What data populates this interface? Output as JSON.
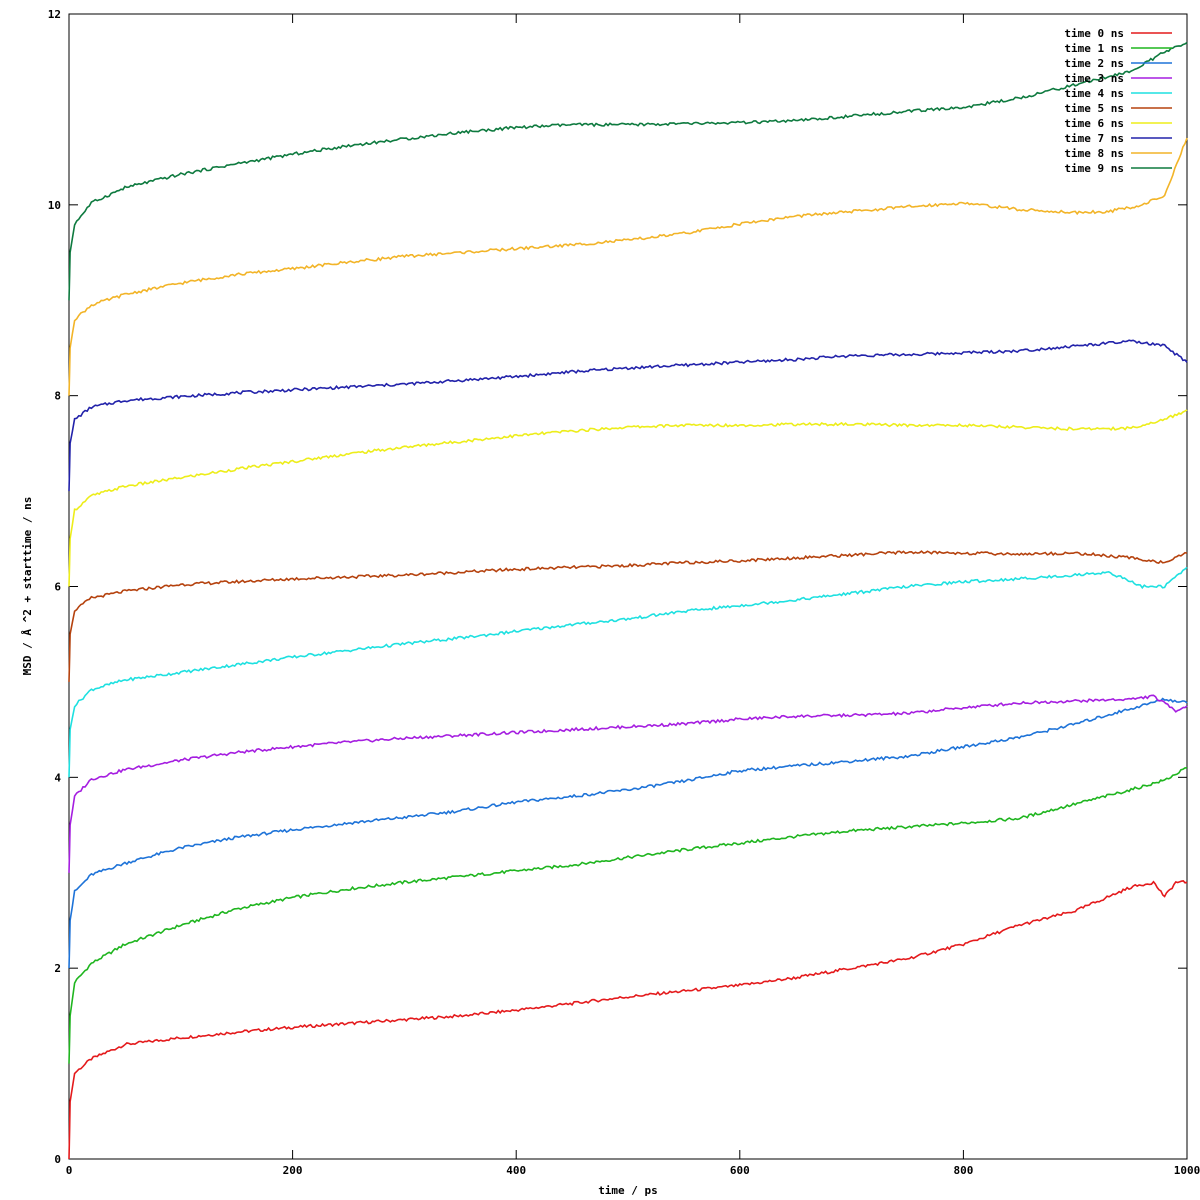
{
  "chart_data": {
    "type": "line",
    "title": "",
    "xlabel": "time / ps",
    "ylabel": "MSD / Å ^2 + starttime / ns",
    "xlim": [
      0,
      1000
    ],
    "ylim": [
      0,
      12
    ],
    "xticks": [
      0,
      200,
      400,
      600,
      800,
      1000
    ],
    "yticks": [
      0,
      2,
      4,
      6,
      8,
      10,
      12
    ],
    "grid": false,
    "legend_position": "top-right",
    "series": [
      {
        "name": "time 0 ns",
        "color": "#e41a1c",
        "points": [
          [
            0,
            0.0
          ],
          [
            1,
            0.6
          ],
          [
            5,
            0.9
          ],
          [
            20,
            1.05
          ],
          [
            50,
            1.2
          ],
          [
            100,
            1.27
          ],
          [
            150,
            1.33
          ],
          [
            200,
            1.38
          ],
          [
            250,
            1.42
          ],
          [
            300,
            1.46
          ],
          [
            350,
            1.5
          ],
          [
            400,
            1.56
          ],
          [
            450,
            1.63
          ],
          [
            500,
            1.7
          ],
          [
            550,
            1.76
          ],
          [
            600,
            1.82
          ],
          [
            650,
            1.9
          ],
          [
            700,
            2.0
          ],
          [
            750,
            2.1
          ],
          [
            800,
            2.25
          ],
          [
            850,
            2.45
          ],
          [
            900,
            2.6
          ],
          [
            950,
            2.85
          ],
          [
            970,
            2.9
          ],
          [
            980,
            2.75
          ],
          [
            990,
            2.9
          ],
          [
            1000,
            2.9
          ]
        ]
      },
      {
        "name": "time 1 ns",
        "color": "#1fb51f",
        "points": [
          [
            0,
            1.0
          ],
          [
            1,
            1.5
          ],
          [
            5,
            1.85
          ],
          [
            20,
            2.05
          ],
          [
            50,
            2.25
          ],
          [
            100,
            2.45
          ],
          [
            150,
            2.62
          ],
          [
            200,
            2.74
          ],
          [
            250,
            2.83
          ],
          [
            300,
            2.9
          ],
          [
            350,
            2.96
          ],
          [
            400,
            3.02
          ],
          [
            450,
            3.08
          ],
          [
            500,
            3.16
          ],
          [
            550,
            3.24
          ],
          [
            600,
            3.31
          ],
          [
            650,
            3.38
          ],
          [
            700,
            3.44
          ],
          [
            750,
            3.48
          ],
          [
            800,
            3.52
          ],
          [
            850,
            3.57
          ],
          [
            900,
            3.72
          ],
          [
            950,
            3.87
          ],
          [
            980,
            3.97
          ],
          [
            1000,
            4.1
          ]
        ]
      },
      {
        "name": "time 2 ns",
        "color": "#1e73d8",
        "points": [
          [
            0,
            2.0
          ],
          [
            1,
            2.5
          ],
          [
            5,
            2.8
          ],
          [
            20,
            2.98
          ],
          [
            50,
            3.1
          ],
          [
            100,
            3.26
          ],
          [
            150,
            3.37
          ],
          [
            200,
            3.45
          ],
          [
            250,
            3.52
          ],
          [
            300,
            3.58
          ],
          [
            350,
            3.65
          ],
          [
            400,
            3.74
          ],
          [
            450,
            3.8
          ],
          [
            500,
            3.87
          ],
          [
            550,
            3.96
          ],
          [
            600,
            4.07
          ],
          [
            650,
            4.12
          ],
          [
            700,
            4.17
          ],
          [
            750,
            4.22
          ],
          [
            800,
            4.32
          ],
          [
            850,
            4.42
          ],
          [
            900,
            4.56
          ],
          [
            950,
            4.72
          ],
          [
            980,
            4.82
          ],
          [
            1000,
            4.78
          ]
        ]
      },
      {
        "name": "time 3 ns",
        "color": "#a51ee0",
        "points": [
          [
            0,
            3.0
          ],
          [
            1,
            3.5
          ],
          [
            5,
            3.8
          ],
          [
            20,
            3.98
          ],
          [
            50,
            4.08
          ],
          [
            100,
            4.18
          ],
          [
            150,
            4.26
          ],
          [
            200,
            4.32
          ],
          [
            250,
            4.37
          ],
          [
            300,
            4.41
          ],
          [
            350,
            4.44
          ],
          [
            400,
            4.47
          ],
          [
            450,
            4.5
          ],
          [
            500,
            4.53
          ],
          [
            550,
            4.56
          ],
          [
            600,
            4.61
          ],
          [
            650,
            4.64
          ],
          [
            700,
            4.65
          ],
          [
            750,
            4.67
          ],
          [
            800,
            4.73
          ],
          [
            850,
            4.78
          ],
          [
            900,
            4.8
          ],
          [
            950,
            4.82
          ],
          [
            970,
            4.85
          ],
          [
            990,
            4.7
          ],
          [
            1000,
            4.75
          ]
        ]
      },
      {
        "name": "time 4 ns",
        "color": "#1ee0e0",
        "points": [
          [
            0,
            4.0
          ],
          [
            1,
            4.5
          ],
          [
            5,
            4.75
          ],
          [
            20,
            4.92
          ],
          [
            50,
            5.02
          ],
          [
            100,
            5.1
          ],
          [
            150,
            5.18
          ],
          [
            200,
            5.26
          ],
          [
            250,
            5.33
          ],
          [
            300,
            5.4
          ],
          [
            350,
            5.46
          ],
          [
            400,
            5.53
          ],
          [
            450,
            5.6
          ],
          [
            500,
            5.66
          ],
          [
            550,
            5.74
          ],
          [
            600,
            5.8
          ],
          [
            650,
            5.86
          ],
          [
            700,
            5.93
          ],
          [
            750,
            6.0
          ],
          [
            800,
            6.05
          ],
          [
            850,
            6.08
          ],
          [
            900,
            6.12
          ],
          [
            930,
            6.15
          ],
          [
            960,
            6.0
          ],
          [
            980,
            6.0
          ],
          [
            1000,
            6.2
          ]
        ]
      },
      {
        "name": "time 5 ns",
        "color": "#b5420e",
        "points": [
          [
            0,
            5.0
          ],
          [
            1,
            5.5
          ],
          [
            5,
            5.75
          ],
          [
            20,
            5.88
          ],
          [
            50,
            5.95
          ],
          [
            100,
            6.02
          ],
          [
            150,
            6.05
          ],
          [
            200,
            6.08
          ],
          [
            250,
            6.1
          ],
          [
            300,
            6.12
          ],
          [
            350,
            6.15
          ],
          [
            400,
            6.18
          ],
          [
            450,
            6.2
          ],
          [
            500,
            6.22
          ],
          [
            550,
            6.25
          ],
          [
            600,
            6.27
          ],
          [
            650,
            6.3
          ],
          [
            700,
            6.33
          ],
          [
            750,
            6.36
          ],
          [
            800,
            6.35
          ],
          [
            850,
            6.34
          ],
          [
            900,
            6.35
          ],
          [
            950,
            6.3
          ],
          [
            980,
            6.25
          ],
          [
            1000,
            6.35
          ]
        ]
      },
      {
        "name": "time 6 ns",
        "color": "#eded1a",
        "points": [
          [
            0,
            6.0
          ],
          [
            1,
            6.5
          ],
          [
            5,
            6.8
          ],
          [
            20,
            6.95
          ],
          [
            50,
            7.05
          ],
          [
            100,
            7.14
          ],
          [
            150,
            7.23
          ],
          [
            200,
            7.31
          ],
          [
            250,
            7.39
          ],
          [
            300,
            7.46
          ],
          [
            350,
            7.52
          ],
          [
            400,
            7.58
          ],
          [
            450,
            7.63
          ],
          [
            500,
            7.67
          ],
          [
            550,
            7.69
          ],
          [
            600,
            7.69
          ],
          [
            650,
            7.7
          ],
          [
            700,
            7.7
          ],
          [
            750,
            7.69
          ],
          [
            800,
            7.69
          ],
          [
            850,
            7.67
          ],
          [
            900,
            7.65
          ],
          [
            950,
            7.66
          ],
          [
            980,
            7.75
          ],
          [
            1000,
            7.85
          ]
        ]
      },
      {
        "name": "time 7 ns",
        "color": "#2222aa",
        "points": [
          [
            0,
            7.0
          ],
          [
            1,
            7.5
          ],
          [
            5,
            7.75
          ],
          [
            20,
            7.88
          ],
          [
            50,
            7.95
          ],
          [
            100,
            7.99
          ],
          [
            150,
            8.03
          ],
          [
            200,
            8.06
          ],
          [
            250,
            8.09
          ],
          [
            300,
            8.12
          ],
          [
            350,
            8.16
          ],
          [
            400,
            8.2
          ],
          [
            450,
            8.25
          ],
          [
            500,
            8.29
          ],
          [
            550,
            8.32
          ],
          [
            600,
            8.35
          ],
          [
            650,
            8.38
          ],
          [
            700,
            8.42
          ],
          [
            750,
            8.43
          ],
          [
            800,
            8.45
          ],
          [
            850,
            8.47
          ],
          [
            900,
            8.52
          ],
          [
            950,
            8.57
          ],
          [
            980,
            8.52
          ],
          [
            1000,
            8.35
          ]
        ]
      },
      {
        "name": "time 8 ns",
        "color": "#f2b428",
        "points": [
          [
            0,
            8.0
          ],
          [
            1,
            8.5
          ],
          [
            5,
            8.8
          ],
          [
            20,
            8.95
          ],
          [
            50,
            9.06
          ],
          [
            100,
            9.18
          ],
          [
            150,
            9.27
          ],
          [
            200,
            9.33
          ],
          [
            250,
            9.4
          ],
          [
            300,
            9.46
          ],
          [
            350,
            9.5
          ],
          [
            400,
            9.54
          ],
          [
            450,
            9.58
          ],
          [
            500,
            9.63
          ],
          [
            550,
            9.7
          ],
          [
            600,
            9.8
          ],
          [
            650,
            9.88
          ],
          [
            700,
            9.93
          ],
          [
            750,
            9.98
          ],
          [
            800,
            10.02
          ],
          [
            850,
            9.95
          ],
          [
            900,
            9.92
          ],
          [
            930,
            9.93
          ],
          [
            960,
            10.0
          ],
          [
            980,
            10.1
          ],
          [
            1000,
            10.7
          ]
        ]
      },
      {
        "name": "time 9 ns",
        "color": "#0e7a3f",
        "points": [
          [
            0,
            9.0
          ],
          [
            1,
            9.5
          ],
          [
            5,
            9.8
          ],
          [
            20,
            10.02
          ],
          [
            50,
            10.18
          ],
          [
            100,
            10.32
          ],
          [
            150,
            10.43
          ],
          [
            200,
            10.53
          ],
          [
            250,
            10.62
          ],
          [
            300,
            10.69
          ],
          [
            350,
            10.76
          ],
          [
            400,
            10.81
          ],
          [
            450,
            10.84
          ],
          [
            500,
            10.84
          ],
          [
            550,
            10.85
          ],
          [
            600,
            10.86
          ],
          [
            650,
            10.88
          ],
          [
            700,
            10.93
          ],
          [
            750,
            10.98
          ],
          [
            800,
            11.02
          ],
          [
            850,
            11.12
          ],
          [
            900,
            11.26
          ],
          [
            950,
            11.4
          ],
          [
            980,
            11.6
          ],
          [
            1000,
            11.7
          ]
        ]
      }
    ]
  }
}
